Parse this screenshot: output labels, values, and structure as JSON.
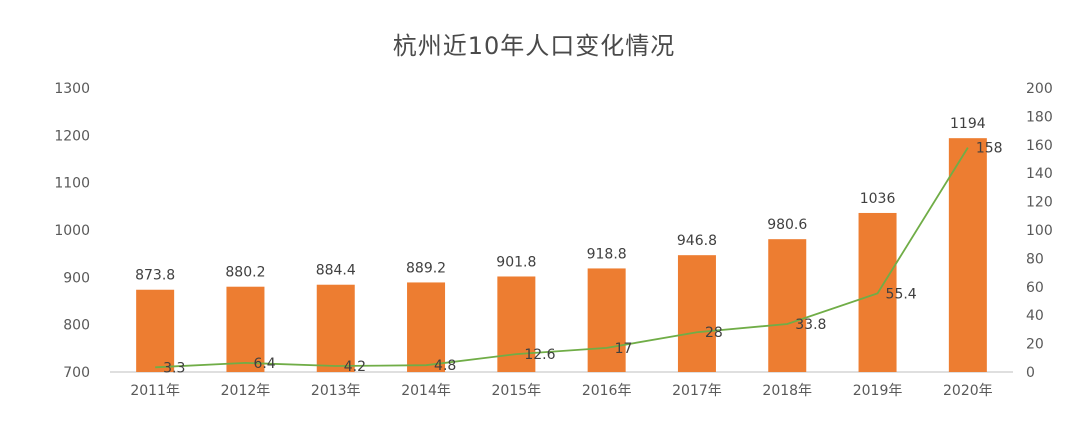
{
  "chart_data": {
    "type": "bar",
    "title": "杭州近10年人口变化情况",
    "categories": [
      "2011年",
      "2012年",
      "2013年",
      "2014年",
      "2015年",
      "2016年",
      "2017年",
      "2018年",
      "2019年",
      "2020年"
    ],
    "series": [
      {
        "chart_type": "bar",
        "axis": "left",
        "values": [
          873.8,
          880.2,
          884.4,
          889.2,
          901.8,
          918.8,
          946.8,
          980.6,
          1036,
          1194
        ],
        "labels": [
          "873.8",
          "880.2",
          "884.4",
          "889.2",
          "901.8",
          "918.8",
          "946.8",
          "980.6",
          "1036",
          "1194"
        ],
        "color": "#ED7D31"
      },
      {
        "chart_type": "line",
        "axis": "right",
        "values": [
          3.3,
          6.4,
          4.2,
          4.8,
          12.6,
          17,
          28,
          33.8,
          55.4,
          158
        ],
        "labels": [
          "3.3",
          "6.4",
          "4.2",
          "4.8",
          "12.6",
          "17",
          "28",
          "33.8",
          "55.4",
          "158"
        ],
        "color": "#70AD47"
      }
    ],
    "y_left": {
      "min": 700,
      "max": 1300,
      "ticks": [
        "700",
        "800",
        "900",
        "1000",
        "1100",
        "1200",
        "1300"
      ]
    },
    "y_right": {
      "min": 0,
      "max": 200,
      "ticks": [
        "0",
        "20",
        "40",
        "60",
        "80",
        "100",
        "120",
        "140",
        "160",
        "180",
        "200"
      ]
    },
    "grid": false,
    "legend": "none"
  }
}
